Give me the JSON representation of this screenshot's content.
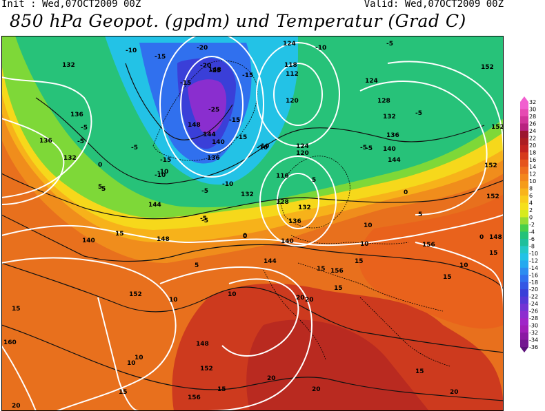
{
  "header": {
    "init": "Init : Wed,07OCT2009 00Z",
    "valid": "Valid: Wed,07OCT2009 00Z",
    "title": "850 hPa Geopot. (gpdm) und Temperatur (Grad C)"
  },
  "colors": {
    "lt_minus_28": "#8a12c9",
    "minus_26_to_minus_24": "#a64cd8",
    "minus_22_to_minus_18": "#2f3fdb",
    "minus_16_to_minus_12": "#3a7ff0",
    "minus_10_to_minus_6": "#2ec6e8",
    "minus_4_to_minus_2": "#27c98a",
    "zero_to_2": "#4fdc4a",
    "two_to_4": "#c7e81d",
    "four_to_6": "#f7e31b",
    "six_to_10": "#f7b21a",
    "ten_to_14": "#f08d1c",
    "fourteen_to_18": "#e86a1d",
    "eighteen_plus": "#cb2e1f",
    "geopotential_lines": "#ffffff",
    "isotherms": "#111111"
  },
  "map_labels": {
    "geopotential": [
      "132",
      "136",
      "136",
      "132",
      "140",
      "144",
      "148",
      "152",
      "160",
      "148",
      "144",
      "140",
      "148",
      "148",
      "136",
      "132",
      "124",
      "118",
      "112",
      "120",
      "124",
      "128",
      "132",
      "136",
      "140",
      "144",
      "152",
      "152",
      "152",
      "152",
      "148",
      "136",
      "128",
      "116",
      "120",
      "124",
      "132",
      "140",
      "144",
      "156",
      "156",
      "152",
      "156"
    ],
    "temperature": [
      "-10",
      "-15",
      "-20",
      "-25",
      "-15",
      "-20",
      "-25",
      "-15",
      "-5",
      "-10",
      "-5",
      "-5",
      "0",
      "5",
      "-15",
      "-10",
      "-5",
      "-10",
      "-5",
      "-5",
      "-15",
      "-10",
      "-5",
      "0",
      "5",
      "10",
      "5",
      "10",
      "15",
      "10",
      "15",
      "10",
      "15",
      "20",
      "20",
      "15",
      "10",
      "15",
      "15",
      "10",
      "15",
      "20",
      "20",
      "20",
      "15",
      "15",
      "20",
      "5",
      "10",
      "15",
      "0",
      "5",
      "-5",
      "-10",
      "-5",
      "0",
      "5",
      "-5",
      "-10",
      "-15",
      "0"
    ]
  },
  "legend": {
    "values": [
      "32",
      "30",
      "28",
      "26",
      "24",
      "22",
      "20",
      "18",
      "16",
      "14",
      "12",
      "10",
      "8",
      "6",
      "4",
      "2",
      "0",
      "-2",
      "-4",
      "-6",
      "-8",
      "-10",
      "-12",
      "-14",
      "-16",
      "-18",
      "-20",
      "-22",
      "-24",
      "-26",
      "-28",
      "-30",
      "-32",
      "-34",
      "-36"
    ],
    "colors": [
      "#f15fcf",
      "#e64ab2",
      "#d1359a",
      "#b8227f",
      "#9c1530",
      "#ac1c22",
      "#c22220",
      "#d63a1d",
      "#e5551e",
      "#ee6e1f",
      "#f3861d",
      "#f59c1b",
      "#f8b41b",
      "#f9cc1b",
      "#f6e01b",
      "#d6eb1d",
      "#96dc34",
      "#48cf4a",
      "#25c279",
      "#1fbf9c",
      "#24c7c7",
      "#23c2e6",
      "#24a9ef",
      "#2c8cf0",
      "#3070ee",
      "#3457e4",
      "#3a3fd8",
      "#5538d6",
      "#7234d4",
      "#8d2ecf",
      "#a026c8",
      "#a01fb8",
      "#8a1aa3",
      "#731690",
      "#5b107a"
    ]
  }
}
